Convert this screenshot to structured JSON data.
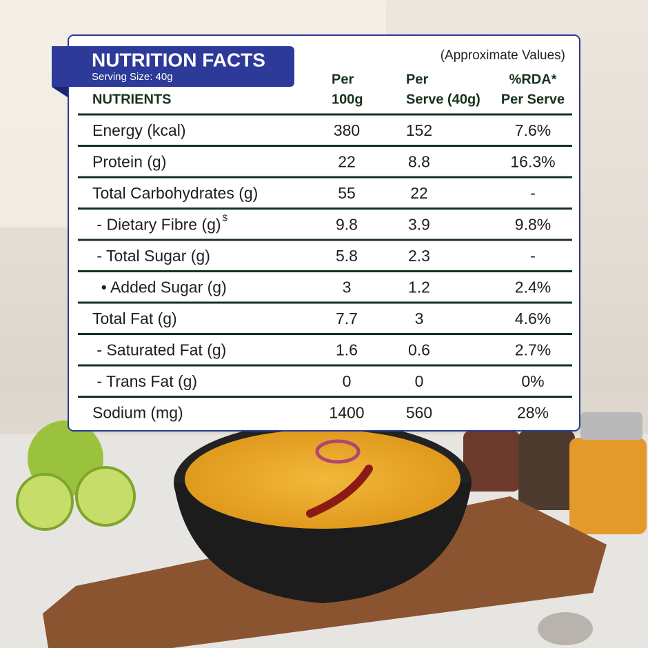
{
  "header": {
    "title": "NUTRITION FACTS",
    "serving": "Serving Size: 40g",
    "note": "(Approximate Values)"
  },
  "table": {
    "columns": [
      {
        "lines": [
          "NUTRIENTS"
        ]
      },
      {
        "lines": [
          "Per",
          "100g"
        ]
      },
      {
        "lines": [
          "Per",
          "Serve (40g)"
        ]
      },
      {
        "lines": [
          "%RDA*",
          "Per Serve"
        ]
      }
    ],
    "rows": [
      {
        "nutrient": "Energy (kcal)",
        "per_100g": "380",
        "per_serve": "152",
        "rda": "7.6%"
      },
      {
        "nutrient": "Protein (g)",
        "per_100g": "22",
        "per_serve": "8.8",
        "rda": "16.3%"
      },
      {
        "nutrient": "Total Carbohydrates (g)",
        "per_100g": "55",
        "per_serve": "22",
        "rda": "-"
      },
      {
        "nutrient": " - Dietary Fibre (g)",
        "mark": "$",
        "per_100g": "9.8",
        "per_serve": "3.9",
        "rda": "9.8%"
      },
      {
        "nutrient": " - Total Sugar (g)",
        "per_100g": "5.8",
        "per_serve": "2.3",
        "rda": "-"
      },
      {
        "nutrient": "  • Added Sugar (g)",
        "per_100g": "3",
        "per_serve": "1.2",
        "rda": "2.4%"
      },
      {
        "nutrient": "Total Fat (g)",
        "per_100g": "7.7",
        "per_serve": "3",
        "rda": "4.6%"
      },
      {
        "nutrient": " - Saturated Fat (g)",
        "per_100g": "1.6",
        "per_serve": "0.6",
        "rda": "2.7%"
      },
      {
        "nutrient": " - Trans Fat (g)",
        "per_100g": "0",
        "per_serve": "0",
        "rda": "0%"
      },
      {
        "nutrient": "Sodium (mg)",
        "per_100g": "1400",
        "per_serve": "560",
        "rda": "28%"
      }
    ]
  }
}
